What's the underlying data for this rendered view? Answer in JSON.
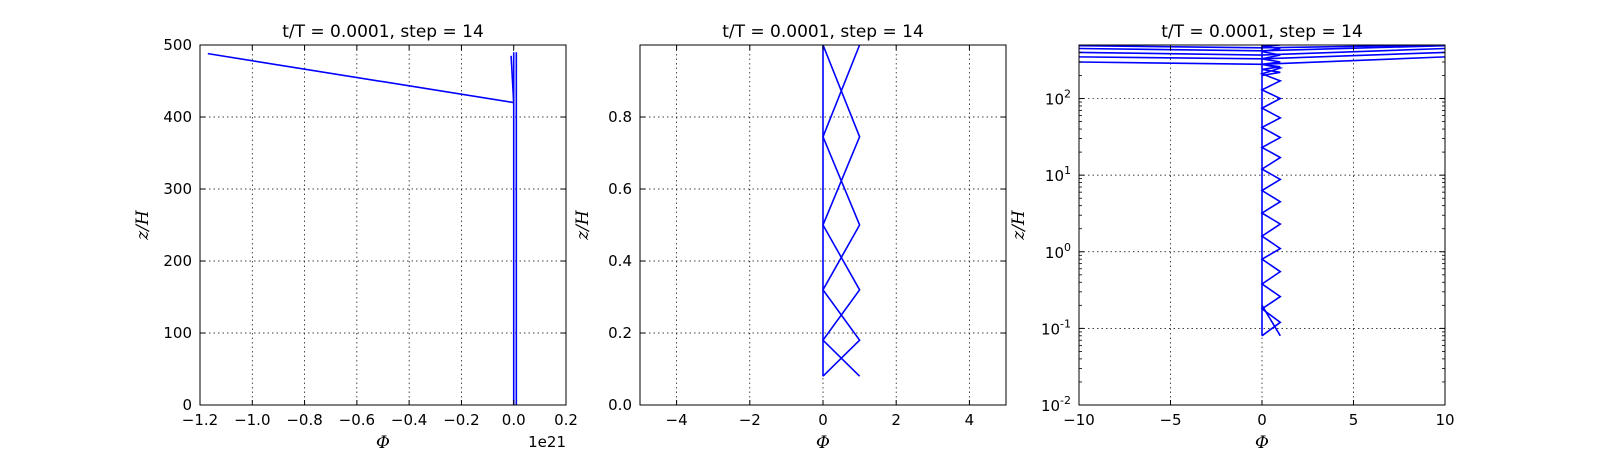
{
  "chart_data": [
    {
      "type": "line",
      "title": "t/T = 0.0001, step = 14",
      "xlabel": "Φ",
      "ylabel": "z/H",
      "x_offset_label": "1e21",
      "xlim": [
        -1.2,
        0.2
      ],
      "ylim": [
        0,
        500
      ],
      "yscale": "linear",
      "grid": true,
      "xticks": [
        -1.2,
        -1.0,
        -0.8,
        -0.6,
        -0.4,
        -0.2,
        0.0,
        0.2
      ],
      "xtick_labels": [
        "−1.2",
        "−1.0",
        "−0.8",
        "−0.6",
        "−0.4",
        "−0.2",
        "0.0",
        "0.2"
      ],
      "yticks": [
        0,
        100,
        200,
        300,
        400,
        500
      ],
      "ytick_labels": [
        "0",
        "100",
        "200",
        "300",
        "400",
        "500"
      ],
      "color": "#0000ff",
      "series": [
        {
          "x": [
            0.0,
            0.0
          ],
          "y": [
            0.08,
            490
          ]
        },
        {
          "x": [
            0.01,
            0.01
          ],
          "y": [
            0.08,
            490
          ]
        },
        {
          "x": [
            -1.17,
            0.0
          ],
          "y": [
            488,
            420
          ]
        },
        {
          "x": [
            -0.01,
            0.0
          ],
          "y": [
            485,
            420
          ]
        }
      ]
    },
    {
      "type": "line",
      "title": "t/T = 0.0001, step = 14",
      "xlabel": "Φ",
      "ylabel": "z/H",
      "xlim": [
        -5,
        5
      ],
      "ylim": [
        0,
        1.0
      ],
      "yscale": "linear",
      "grid": true,
      "xticks": [
        -4,
        -2,
        0,
        2,
        4
      ],
      "xtick_labels": [
        "−4",
        "−2",
        "0",
        "2",
        "4"
      ],
      "yticks": [
        0.0,
        0.2,
        0.4,
        0.6,
        0.8
      ],
      "ytick_labels": [
        "0.0",
        "0.2",
        "0.4",
        "0.6",
        "0.8"
      ],
      "color": "#0000ff",
      "series": [
        {
          "x": [
            0,
            0
          ],
          "y": [
            0.08,
            1.0
          ]
        },
        {
          "x": [
            1,
            0,
            1,
            0,
            1,
            0,
            1,
            0,
            1,
            0,
            1
          ],
          "y": [
            0.08,
            0.18,
            0.32,
            0.5,
            0.745,
            1.0,
            0.745,
            0.5,
            0.32,
            0.18,
            0.08
          ]
        },
        {
          "x": [
            0,
            1,
            0,
            1,
            0,
            1,
            0,
            1,
            0,
            1,
            0
          ],
          "y": [
            0.08,
            0.18,
            0.32,
            0.5,
            0.745,
            1.0,
            0.745,
            0.5,
            0.32,
            0.18,
            0.08
          ]
        }
      ]
    },
    {
      "type": "line",
      "title": "t/T = 0.0001, step = 14",
      "xlabel": "Φ",
      "ylabel": "z/H",
      "xlim": [
        -10,
        10
      ],
      "ylim": [
        0.01,
        500
      ],
      "yscale": "log",
      "grid": true,
      "xticks": [
        -10,
        -5,
        0,
        5,
        10
      ],
      "xtick_labels": [
        "−10",
        "−5",
        "0",
        "5",
        "10"
      ],
      "yticks": [
        0.01,
        0.1,
        1,
        10,
        100
      ],
      "ytick_bases": [
        "10",
        "10",
        "10",
        "10",
        "10"
      ],
      "ytick_exponents": [
        "-2",
        "-1",
        "0",
        "1",
        "2"
      ],
      "color": "#0000ff",
      "series": [
        {
          "x": [
            0,
            0
          ],
          "y": [
            0.08,
            500
          ]
        },
        {
          "x": [
            0,
            1,
            0,
            1,
            0,
            1,
            0,
            1,
            0,
            1,
            0,
            1,
            0,
            1,
            0,
            1,
            0,
            1,
            0,
            1,
            0,
            1,
            0,
            1,
            0,
            1,
            0,
            1,
            0,
            1,
            0,
            1,
            0,
            1,
            0,
            1,
            0,
            1,
            0,
            1,
            0,
            1,
            0,
            1,
            0
          ],
          "y": [
            0.08,
            0.12,
            0.18,
            0.26,
            0.38,
            0.55,
            0.8,
            1.1,
            1.6,
            2.3,
            3.2,
            4.5,
            6.3,
            8.8,
            12,
            17,
            23,
            31,
            42,
            56,
            75,
            100,
            130,
            170,
            210,
            250,
            280,
            300,
            330,
            370,
            410,
            450,
            480,
            500,
            480,
            450,
            410,
            370,
            330,
            300,
            280,
            260,
            240,
            220,
            200
          ]
        },
        {
          "x": [
            1,
            0
          ],
          "y": [
            0.08,
            0.2
          ]
        },
        {
          "x": [
            -10,
            0,
            10
          ],
          "y": [
            300,
            280,
            350
          ]
        },
        {
          "x": [
            -10,
            0,
            10
          ],
          "y": [
            350,
            330,
            400
          ]
        },
        {
          "x": [
            -10,
            0,
            10
          ],
          "y": [
            400,
            370,
            450
          ]
        },
        {
          "x": [
            -10,
            0,
            10
          ],
          "y": [
            450,
            420,
            490
          ]
        },
        {
          "x": [
            -10,
            0,
            10
          ],
          "y": [
            490,
            460,
            500
          ]
        }
      ]
    }
  ]
}
